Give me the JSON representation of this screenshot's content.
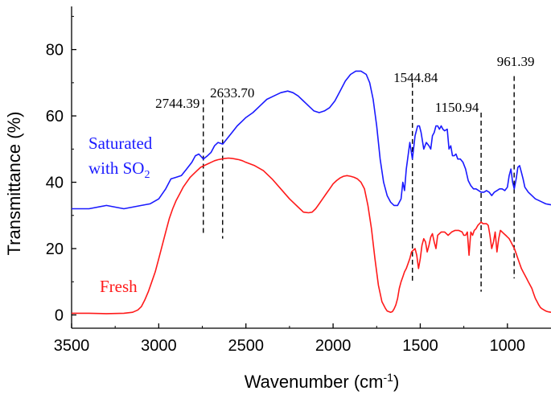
{
  "chart_data": {
    "type": "line",
    "title": "",
    "xlabel": "Wavenumber (cm",
    "xlabel_sup": "-1",
    "xlabel_end": ")",
    "ylabel": "Transmittance (%)",
    "xlim": [
      3500,
      750
    ],
    "ylim": [
      -4,
      93
    ],
    "x_ticks": [
      3500,
      3000,
      2500,
      2000,
      1500,
      1000
    ],
    "y_ticks": [
      0,
      20,
      40,
      60,
      80
    ],
    "x_tick_labels": [
      "3500",
      "3000",
      "2500",
      "2000",
      "1500",
      "1000"
    ],
    "y_tick_labels": [
      "0",
      "20",
      "40",
      "60",
      "80"
    ],
    "series": [
      {
        "name": "Saturated with SO2",
        "label_line1": "Saturated",
        "label_line2": "with SO",
        "label_sub": "2",
        "color": "#1a1aff",
        "x": [
          3500,
          3400,
          3300,
          3200,
          3100,
          3050,
          3000,
          2960,
          2930,
          2900,
          2870,
          2840,
          2810,
          2790,
          2770,
          2744,
          2720,
          2700,
          2680,
          2660,
          2633,
          2610,
          2580,
          2550,
          2520,
          2500,
          2460,
          2420,
          2380,
          2340,
          2300,
          2260,
          2230,
          2200,
          2170,
          2140,
          2110,
          2080,
          2050,
          2020,
          1990,
          1960,
          1930,
          1900,
          1870,
          1840,
          1810,
          1790,
          1770,
          1750,
          1730,
          1710,
          1690,
          1670,
          1650,
          1630,
          1610,
          1600,
          1590,
          1580,
          1570,
          1560,
          1545,
          1530,
          1515,
          1505,
          1495,
          1480,
          1465,
          1450,
          1440,
          1430,
          1420,
          1410,
          1400,
          1390,
          1380,
          1370,
          1360,
          1345,
          1335,
          1325,
          1315,
          1305,
          1295,
          1285,
          1270,
          1255,
          1240,
          1225,
          1210,
          1195,
          1180,
          1165,
          1151,
          1135,
          1120,
          1105,
          1090,
          1075,
          1060,
          1045,
          1030,
          1015,
          1000,
          990,
          980,
          970,
          961,
          950,
          940,
          930,
          920,
          910,
          900,
          880,
          860,
          840,
          820,
          800,
          780,
          760,
          750
        ],
        "y": [
          32,
          32,
          33,
          32,
          33,
          33.5,
          35,
          38,
          41,
          41.5,
          42,
          44,
          46,
          48,
          48.5,
          47,
          48,
          49,
          51,
          52,
          51.5,
          53,
          55,
          57,
          58.5,
          59.5,
          61,
          63,
          65,
          66,
          67,
          67.5,
          67,
          66,
          64.5,
          63,
          61.5,
          61,
          61.5,
          62.5,
          64.5,
          67.5,
          70.5,
          72.5,
          73.5,
          73.5,
          72.5,
          70,
          65,
          57,
          47,
          40,
          36,
          34,
          33,
          33,
          35,
          40,
          37.5,
          44,
          48,
          52,
          47,
          54,
          57,
          57,
          55,
          50,
          52,
          51,
          50,
          54,
          55,
          57,
          57,
          56,
          57,
          56,
          55.5,
          56,
          50,
          51,
          48,
          48,
          48.5,
          47,
          47,
          46,
          44,
          40.5,
          39,
          38,
          38,
          37.5,
          37,
          37,
          37.5,
          37,
          36,
          37,
          37.5,
          38,
          38,
          37.5,
          38.5,
          42,
          44,
          40,
          38,
          41,
          44.5,
          45,
          43,
          41,
          38.5,
          37,
          36,
          35,
          34.5,
          34,
          33.5,
          33.3,
          33.2
        ]
      },
      {
        "name": "Fresh",
        "label": "Fresh",
        "color": "#ff1a1a",
        "x": [
          3500,
          3400,
          3300,
          3200,
          3150,
          3120,
          3100,
          3080,
          3060,
          3040,
          3020,
          3000,
          2980,
          2960,
          2940,
          2920,
          2900,
          2880,
          2860,
          2840,
          2820,
          2800,
          2780,
          2760,
          2740,
          2720,
          2700,
          2680,
          2660,
          2640,
          2620,
          2600,
          2580,
          2560,
          2540,
          2520,
          2500,
          2450,
          2400,
          2350,
          2300,
          2250,
          2200,
          2170,
          2140,
          2120,
          2100,
          2080,
          2060,
          2040,
          2020,
          2000,
          1980,
          1960,
          1940,
          1920,
          1900,
          1880,
          1860,
          1840,
          1820,
          1800,
          1780,
          1760,
          1740,
          1720,
          1700,
          1690,
          1680,
          1670,
          1660,
          1650,
          1640,
          1630,
          1620,
          1610,
          1600,
          1590,
          1580,
          1570,
          1560,
          1550,
          1540,
          1530,
          1520,
          1510,
          1500,
          1490,
          1480,
          1470,
          1460,
          1450,
          1440,
          1430,
          1420,
          1410,
          1400,
          1380,
          1360,
          1340,
          1320,
          1300,
          1280,
          1260,
          1250,
          1240,
          1230,
          1220,
          1210,
          1200,
          1190,
          1180,
          1170,
          1160,
          1151,
          1140,
          1130,
          1120,
          1110,
          1100,
          1090,
          1080,
          1070,
          1060,
          1050,
          1040,
          1030,
          1020,
          1010,
          1000,
          990,
          980,
          970,
          960,
          950,
          940,
          930,
          920,
          910,
          900,
          890,
          880,
          870,
          860,
          850,
          840,
          830,
          820,
          810,
          800,
          790,
          780,
          770,
          760,
          750
        ],
        "y": [
          0.5,
          0.5,
          0.4,
          0.5,
          0.8,
          1.5,
          2.5,
          4.5,
          7,
          10,
          13,
          17,
          21,
          25,
          29,
          32,
          34.5,
          36.5,
          38.5,
          40,
          41.5,
          42.5,
          43.5,
          44.5,
          45,
          45.5,
          46,
          46.5,
          46.8,
          47,
          47.2,
          47.3,
          47.2,
          47,
          46.8,
          46.5,
          46,
          45,
          43.5,
          41,
          38,
          35,
          32.5,
          31,
          30.8,
          31,
          32,
          33.5,
          35,
          36.5,
          38,
          39.5,
          40.5,
          41.3,
          41.8,
          42,
          41.8,
          41.5,
          41,
          40,
          38,
          33,
          26,
          17,
          9,
          4,
          2,
          1.2,
          1,
          0.8,
          1,
          1.8,
          3,
          5,
          8,
          10,
          11.5,
          13,
          14,
          15.5,
          17,
          19,
          19.5,
          20,
          18,
          14,
          17,
          21,
          23,
          22,
          19,
          21,
          23.5,
          24.5,
          22,
          20,
          24,
          25,
          25,
          24,
          25,
          25.5,
          25.5,
          25,
          24,
          24,
          25,
          18,
          25,
          24,
          25.5,
          26,
          27,
          27.5,
          28,
          27.5,
          27.5,
          27.5,
          27,
          24,
          20,
          22,
          25,
          19,
          23,
          25.5,
          25,
          24.5,
          24,
          23.5,
          23,
          22,
          21,
          20,
          18.5,
          17,
          15.5,
          14,
          13,
          12,
          11,
          10,
          9,
          8,
          6.5,
          5,
          4,
          3,
          2.2,
          1.8,
          1.5,
          1.2,
          1,
          0.9,
          0.8
        ]
      }
    ],
    "annotations": [
      {
        "label": "2744.39",
        "x": 2744.39,
        "y_top": 65,
        "y_bottom": 24
      },
      {
        "label": "2633.70",
        "x": 2633.7,
        "y_top": 65,
        "y_bottom": 23
      },
      {
        "label": "1544.84",
        "x": 1544.84,
        "y_top": 70,
        "y_bottom": 10
      },
      {
        "label": "1150.94",
        "x": 1150.94,
        "y_top": 61,
        "y_bottom": 7
      },
      {
        "label": "961.39",
        "x": 961.39,
        "y_top": 72,
        "y_bottom": 11
      }
    ]
  }
}
